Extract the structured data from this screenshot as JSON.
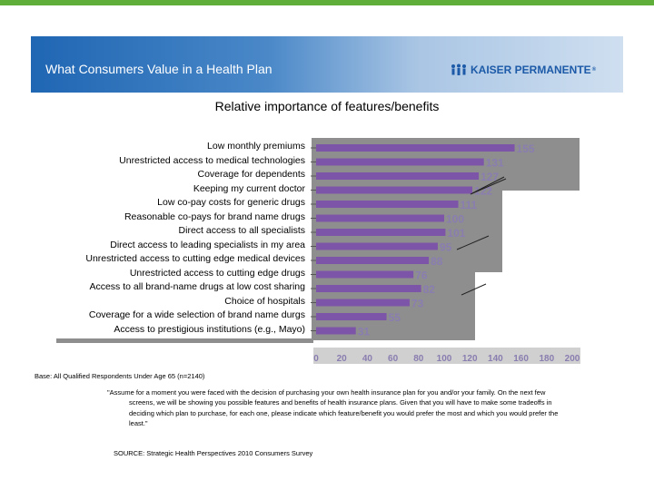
{
  "header": {
    "title": "What Consumers Value in a Health Plan",
    "logo_text": "KAISER PERMANENTE",
    "logo_mark": "®",
    "accent_color": "#5fae3a",
    "banner_color": "#1f66b3"
  },
  "chart_data": {
    "type": "bar",
    "orientation": "horizontal",
    "title": "Relative importance of features/benefits",
    "categories": [
      "Low monthly premiums",
      "Unrestricted access to medical technologies",
      "Coverage for dependents",
      "Keeping my current doctor",
      "Low co-pay costs for generic drugs",
      "Reasonable co-pays for brand name drugs",
      "Direct access to all specialists",
      "Direct access to leading specialists in my area",
      "Unrestricted access to cutting edge medical devices",
      "Unrestricted access to cutting edge drugs",
      "Access to all brand-name drugs at low cost sharing",
      "Choice of hospitals",
      "Coverage for a wide selection of brand name durgs",
      "Access to prestigious institutions (e.g., Mayo)"
    ],
    "values": [
      155,
      131,
      127,
      122,
      111,
      100,
      101,
      95,
      88,
      76,
      82,
      73,
      55,
      31
    ],
    "value_labels": [
      "155",
      "131",
      "127",
      "122",
      "111",
      "100",
      "101",
      "95",
      "88",
      "76",
      "82",
      "73",
      "55",
      "31"
    ],
    "x_ticks": [
      "0",
      "20",
      "40",
      "60",
      "80",
      "100",
      "120",
      "140",
      "160",
      "180",
      "200"
    ],
    "xlim": [
      0,
      200
    ],
    "bar_color": "#7d55a8",
    "label_color": "#8a7db0",
    "plot_background": "#8e8e8e",
    "grid": false,
    "legend": "none"
  },
  "footer": {
    "base": "Base: All Qualified Respondents Under Age 65 (n=2140)",
    "note": "\"Assume for a moment you were faced with the decision of purchasing your own health insurance plan for you and/or your family. On the next few screens, we will be showing you possible features and benefits of health insurance plans. Given that you will have to make some tradeoffs in deciding which plan to purchase, for each one, please indicate which feature/benefit you would prefer the most and which you would prefer the least.\"",
    "source": "SOURCE: Strategic Health Perspectives 2010 Consumers Survey"
  }
}
